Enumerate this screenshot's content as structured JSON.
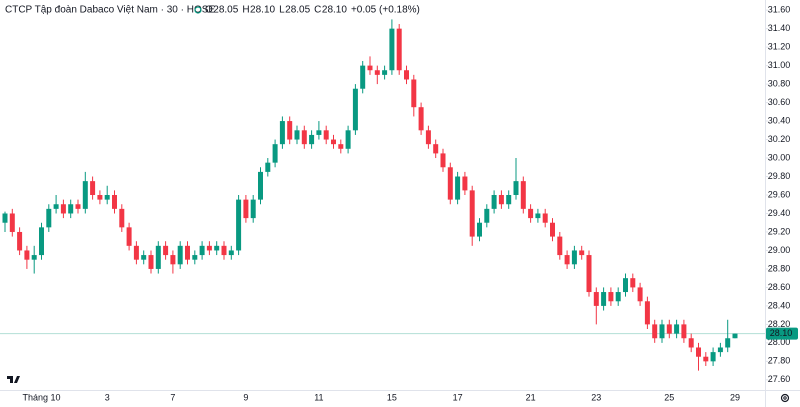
{
  "chart_data": {
    "type": "candlestick",
    "title": "CTCP Tập đoàn Dabaco Việt Nam · 30 · HOSE",
    "ohlc_legend": [
      {
        "key": "O",
        "value": "28.05"
      },
      {
        "key": "H",
        "value": "28.10"
      },
      {
        "key": "L",
        "value": "28.05"
      },
      {
        "key": "C",
        "value": "28.10"
      }
    ],
    "change": "+0.05 (+0.18%)",
    "up_color": "#089981",
    "down_color": "#f23645",
    "ylim": [
      27.49,
      31.71
    ],
    "yticks": [
      {
        "value": 27.6,
        "label": "27.60"
      },
      {
        "value": 27.8,
        "label": "27.80"
      },
      {
        "value": 28,
        "label": "28.00"
      },
      {
        "value": 28.2,
        "label": "28.20"
      },
      {
        "value": 28.4,
        "label": "28.40"
      },
      {
        "value": 28.6,
        "label": "28.60"
      },
      {
        "value": 28.8,
        "label": "28.80"
      },
      {
        "value": 29,
        "label": "29.00"
      },
      {
        "value": 29.2,
        "label": "29.20"
      },
      {
        "value": 29.4,
        "label": "29.40"
      },
      {
        "value": 29.6,
        "label": "29.60"
      },
      {
        "value": 29.8,
        "label": "29.80"
      },
      {
        "value": 30,
        "label": "30.00"
      },
      {
        "value": 30.2,
        "label": "30.20"
      },
      {
        "value": 30.4,
        "label": "30.40"
      },
      {
        "value": 30.6,
        "label": "30.60"
      },
      {
        "value": 30.8,
        "label": "30.80"
      },
      {
        "value": 31,
        "label": "31.00"
      },
      {
        "value": 31.2,
        "label": "31.20"
      },
      {
        "value": 31.4,
        "label": "31.40"
      },
      {
        "value": 31.6,
        "label": "31.60"
      }
    ],
    "last_price": {
      "value": 28.1,
      "label": "28.10"
    },
    "categories": [
      null,
      null,
      null,
      null,
      null,
      "Tháng 10",
      null,
      null,
      null,
      null,
      null,
      null,
      null,
      null,
      "3",
      null,
      null,
      null,
      null,
      null,
      null,
      null,
      null,
      "7",
      null,
      null,
      null,
      null,
      null,
      null,
      null,
      null,
      null,
      "9",
      null,
      null,
      null,
      null,
      null,
      null,
      null,
      null,
      null,
      "11",
      null,
      null,
      null,
      null,
      null,
      null,
      null,
      null,
      null,
      "15",
      null,
      null,
      null,
      null,
      null,
      null,
      null,
      null,
      "17",
      null,
      null,
      null,
      null,
      null,
      null,
      null,
      null,
      null,
      "21",
      null,
      null,
      null,
      null,
      null,
      null,
      null,
      null,
      "23",
      null,
      null,
      null,
      null,
      null,
      null,
      null,
      null,
      null,
      "25",
      null,
      null,
      null,
      null,
      null,
      null,
      null,
      null,
      "29"
    ],
    "candles": [
      [
        29.3,
        29.42,
        29.2,
        29.4
      ],
      [
        29.4,
        29.45,
        29.15,
        29.2
      ],
      [
        29.2,
        29.25,
        28.95,
        29.0
      ],
      [
        29.0,
        29.05,
        28.8,
        28.9
      ],
      [
        28.9,
        29.05,
        28.75,
        28.95
      ],
      [
        28.95,
        29.3,
        28.9,
        29.25
      ],
      [
        29.25,
        29.5,
        29.2,
        29.45
      ],
      [
        29.45,
        29.6,
        29.4,
        29.5
      ],
      [
        29.5,
        29.55,
        29.35,
        29.4
      ],
      [
        29.4,
        29.55,
        29.35,
        29.5
      ],
      [
        29.5,
        29.55,
        29.4,
        29.45
      ],
      [
        29.45,
        29.85,
        29.4,
        29.75
      ],
      [
        29.75,
        29.8,
        29.55,
        29.6
      ],
      [
        29.6,
        29.65,
        29.5,
        29.55
      ],
      [
        29.55,
        29.7,
        29.5,
        29.6
      ],
      [
        29.6,
        29.65,
        29.4,
        29.45
      ],
      [
        29.45,
        29.5,
        29.2,
        29.25
      ],
      [
        29.25,
        29.3,
        29.0,
        29.05
      ],
      [
        29.05,
        29.1,
        28.85,
        28.9
      ],
      [
        28.9,
        29.0,
        28.85,
        28.95
      ],
      [
        28.95,
        29.0,
        28.75,
        28.8
      ],
      [
        28.8,
        29.1,
        28.75,
        29.05
      ],
      [
        29.05,
        29.1,
        28.9,
        28.95
      ],
      [
        28.95,
        29.0,
        28.75,
        28.85
      ],
      [
        28.85,
        29.1,
        28.8,
        29.05
      ],
      [
        29.05,
        29.1,
        28.85,
        28.9
      ],
      [
        28.9,
        29.0,
        28.85,
        28.95
      ],
      [
        28.95,
        29.1,
        28.9,
        29.05
      ],
      [
        29.05,
        29.1,
        28.95,
        29.0
      ],
      [
        29.0,
        29.1,
        28.95,
        29.05
      ],
      [
        29.05,
        29.1,
        28.9,
        28.95
      ],
      [
        28.95,
        29.05,
        28.9,
        29.0
      ],
      [
        29.0,
        29.6,
        28.95,
        29.55
      ],
      [
        29.55,
        29.6,
        29.3,
        29.35
      ],
      [
        29.35,
        29.6,
        29.3,
        29.55
      ],
      [
        29.55,
        29.9,
        29.5,
        29.85
      ],
      [
        29.85,
        30.0,
        29.8,
        29.95
      ],
      [
        29.95,
        30.2,
        29.9,
        30.15
      ],
      [
        30.15,
        30.45,
        30.1,
        30.4
      ],
      [
        30.4,
        30.45,
        30.15,
        30.2
      ],
      [
        30.2,
        30.35,
        30.15,
        30.3
      ],
      [
        30.3,
        30.35,
        30.1,
        30.15
      ],
      [
        30.15,
        30.3,
        30.1,
        30.25
      ],
      [
        30.25,
        30.4,
        30.2,
        30.3
      ],
      [
        30.3,
        30.35,
        30.15,
        30.2
      ],
      [
        30.2,
        30.25,
        30.1,
        30.15
      ],
      [
        30.15,
        30.2,
        30.05,
        30.1
      ],
      [
        30.1,
        30.35,
        30.05,
        30.3
      ],
      [
        30.3,
        30.8,
        30.25,
        30.75
      ],
      [
        30.75,
        31.05,
        30.7,
        31.0
      ],
      [
        31.0,
        31.1,
        30.9,
        30.95
      ],
      [
        30.95,
        31.0,
        30.8,
        30.9
      ],
      [
        30.9,
        31.0,
        30.85,
        30.95
      ],
      [
        30.95,
        31.5,
        30.9,
        31.4
      ],
      [
        31.4,
        31.45,
        30.9,
        30.95
      ],
      [
        30.95,
        31.0,
        30.8,
        30.85
      ],
      [
        30.85,
        30.9,
        30.45,
        30.55
      ],
      [
        30.55,
        30.6,
        30.25,
        30.3
      ],
      [
        30.3,
        30.35,
        30.1,
        30.15
      ],
      [
        30.15,
        30.2,
        30.0,
        30.05
      ],
      [
        30.05,
        30.1,
        29.85,
        29.9
      ],
      [
        29.9,
        29.95,
        29.5,
        29.55
      ],
      [
        29.55,
        29.85,
        29.5,
        29.8
      ],
      [
        29.8,
        29.85,
        29.6,
        29.65
      ],
      [
        29.65,
        29.7,
        29.05,
        29.15
      ],
      [
        29.15,
        29.35,
        29.1,
        29.3
      ],
      [
        29.3,
        29.5,
        29.25,
        29.45
      ],
      [
        29.45,
        29.65,
        29.4,
        29.6
      ],
      [
        29.6,
        29.65,
        29.45,
        29.5
      ],
      [
        29.5,
        29.65,
        29.45,
        29.6
      ],
      [
        29.6,
        30.0,
        29.55,
        29.75
      ],
      [
        29.75,
        29.8,
        29.4,
        29.45
      ],
      [
        29.45,
        29.5,
        29.3,
        29.35
      ],
      [
        29.35,
        29.45,
        29.3,
        29.4
      ],
      [
        29.4,
        29.45,
        29.25,
        29.3
      ],
      [
        29.3,
        29.35,
        29.1,
        29.15
      ],
      [
        29.15,
        29.2,
        28.9,
        28.95
      ],
      [
        28.95,
        29.0,
        28.8,
        28.85
      ],
      [
        28.85,
        29.05,
        28.8,
        29.0
      ],
      [
        29.0,
        29.05,
        28.9,
        28.95
      ],
      [
        28.95,
        29.0,
        28.5,
        28.55
      ],
      [
        28.55,
        28.6,
        28.2,
        28.4
      ],
      [
        28.4,
        28.6,
        28.35,
        28.55
      ],
      [
        28.55,
        28.6,
        28.4,
        28.45
      ],
      [
        28.45,
        28.6,
        28.4,
        28.55
      ],
      [
        28.55,
        28.75,
        28.5,
        28.7
      ],
      [
        28.7,
        28.75,
        28.55,
        28.6
      ],
      [
        28.6,
        28.65,
        28.4,
        28.45
      ],
      [
        28.45,
        28.5,
        28.15,
        28.2
      ],
      [
        28.2,
        28.25,
        28.0,
        28.05
      ],
      [
        28.05,
        28.25,
        28.0,
        28.2
      ],
      [
        28.2,
        28.25,
        28.05,
        28.1
      ],
      [
        28.1,
        28.25,
        28.05,
        28.2
      ],
      [
        28.2,
        28.25,
        28.0,
        28.05
      ],
      [
        28.05,
        28.1,
        27.9,
        27.95
      ],
      [
        27.95,
        28.0,
        27.7,
        27.85
      ],
      [
        27.85,
        27.9,
        27.75,
        27.8
      ],
      [
        27.8,
        27.95,
        27.75,
        27.9
      ],
      [
        27.9,
        28.0,
        27.85,
        27.95
      ],
      [
        27.95,
        28.25,
        27.9,
        28.05
      ],
      [
        28.05,
        28.1,
        28.05,
        28.1
      ]
    ]
  }
}
